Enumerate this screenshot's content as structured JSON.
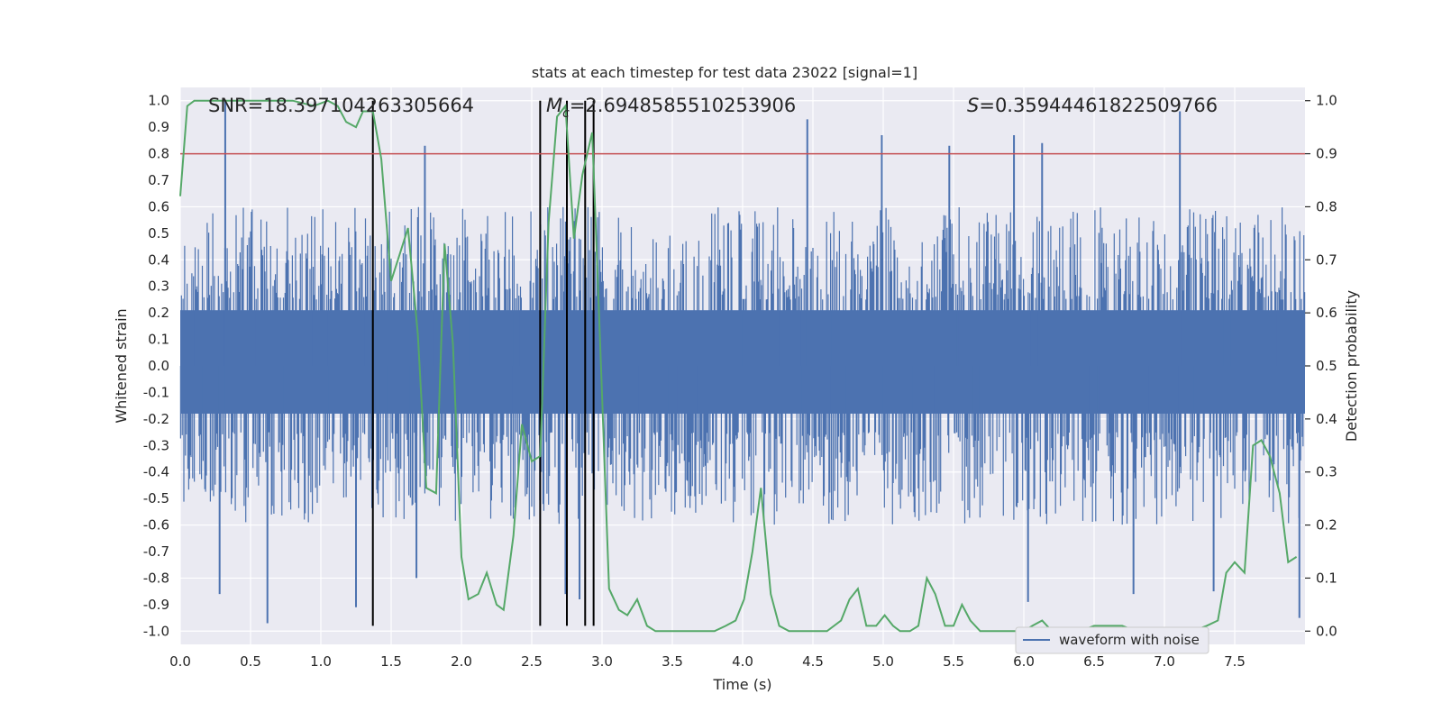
{
  "chart_data": {
    "type": "line",
    "title": "stats at each timestep for test data 23022 [signal=1]",
    "xlabel": "Time (s)",
    "ylabel": "Whitened strain",
    "y2label": "Detection probability",
    "xlim": [
      0.0,
      8.0
    ],
    "ylim": [
      -1.05,
      1.05
    ],
    "y2lim": [
      -0.025,
      1.025
    ],
    "x_ticks": [
      0.0,
      0.5,
      1.0,
      1.5,
      2.0,
      2.5,
      3.0,
      3.5,
      4.0,
      4.5,
      5.0,
      5.5,
      6.0,
      6.5,
      7.0,
      7.5
    ],
    "x_tick_labels": [
      "0.0",
      "0.5",
      "1.0",
      "1.5",
      "2.0",
      "2.5",
      "3.0",
      "3.5",
      "4.0",
      "4.5",
      "5.0",
      "5.5",
      "6.0",
      "6.5",
      "7.0",
      "7.5"
    ],
    "y_ticks": [
      1.0,
      0.9,
      0.8,
      0.7,
      0.6,
      0.5,
      0.4,
      0.3,
      0.2,
      0.1,
      0.0,
      -0.1,
      -0.2,
      -0.3,
      -0.4,
      -0.5,
      -0.6,
      -0.7,
      -0.8,
      -0.9,
      -1.0
    ],
    "y_tick_labels": [
      "1.0",
      "0.9",
      "0.8",
      "0.7",
      "0.6",
      "0.5",
      "0.4",
      "0.3",
      "0.2",
      "0.1",
      "0.0",
      "-0.1",
      "-0.2",
      "-0.3",
      "-0.4",
      "-0.5",
      "-0.6",
      "-0.7",
      "-0.8",
      "-0.9",
      "-1.0"
    ],
    "y2_ticks": [
      1.0,
      0.9,
      0.8,
      0.7,
      0.6,
      0.5,
      0.4,
      0.3,
      0.2,
      0.1,
      0.0
    ],
    "y2_tick_labels": [
      "1.0",
      "0.9",
      "0.8",
      "0.7",
      "0.6",
      "0.5",
      "0.4",
      "0.3",
      "0.2",
      "0.1",
      "0.0"
    ],
    "grid": true,
    "annotations": {
      "snr": "SNR=18.397104263305664",
      "mc_symbol": "M",
      "mc_subscript": "c",
      "mc_value": "=2.6948585510253906",
      "s_symbol": "S",
      "s_value": "=0.35944461822509766"
    },
    "threshold": {
      "value": 0.9,
      "axis": "y2",
      "color": "#c44e52"
    },
    "vertical_markers": {
      "x": [
        1.37,
        2.56,
        2.75,
        2.88,
        2.94
      ],
      "y_range": [
        -0.98,
        1.0
      ],
      "color": "#000000"
    },
    "series": [
      {
        "name": "waveform with noise",
        "axis": "y",
        "color": "#4c72b0",
        "kind": "noise-envelope",
        "dense_band": [
          -0.18,
          0.21
        ],
        "typical_peak_range": [
          0.25,
          0.6
        ],
        "outlier_peaks": [
          {
            "t": 0.32,
            "v": 1.0
          },
          {
            "t": 0.62,
            "v": -0.97
          },
          {
            "t": 1.25,
            "v": -0.91
          },
          {
            "t": 1.74,
            "v": 0.83
          },
          {
            "t": 2.74,
            "v": -0.86
          },
          {
            "t": 2.84,
            "v": -0.88
          },
          {
            "t": 4.46,
            "v": 0.93
          },
          {
            "t": 5.93,
            "v": 0.87
          },
          {
            "t": 6.03,
            "v": -0.89
          },
          {
            "t": 6.13,
            "v": 0.84
          },
          {
            "t": 6.78,
            "v": -0.86
          },
          {
            "t": 7.11,
            "v": 0.96
          },
          {
            "t": 7.35,
            "v": -0.85
          },
          {
            "t": 7.96,
            "v": -0.95
          },
          {
            "t": 0.28,
            "v": -0.86
          },
          {
            "t": 4.99,
            "v": 0.87
          },
          {
            "t": 5.47,
            "v": 0.83
          },
          {
            "t": 1.68,
            "v": -0.8
          }
        ]
      },
      {
        "name": "detection probability",
        "axis": "y2",
        "color": "#55a868",
        "x": [
          0.0,
          0.05,
          0.1,
          0.2,
          0.3,
          0.4,
          0.5,
          0.6,
          0.7,
          0.8,
          0.95,
          1.05,
          1.12,
          1.18,
          1.25,
          1.3,
          1.37,
          1.43,
          1.5,
          1.56,
          1.62,
          1.69,
          1.75,
          1.82,
          1.88,
          1.94,
          2.0,
          2.05,
          2.12,
          2.18,
          2.25,
          2.3,
          2.37,
          2.43,
          2.5,
          2.56,
          2.62,
          2.68,
          2.74,
          2.8,
          2.86,
          2.93,
          2.99,
          3.05,
          3.12,
          3.18,
          3.25,
          3.32,
          3.38,
          3.5,
          3.6,
          3.7,
          3.8,
          3.88,
          3.95,
          4.01,
          4.07,
          4.13,
          4.2,
          4.26,
          4.33,
          4.4,
          4.5,
          4.6,
          4.7,
          4.76,
          4.82,
          4.88,
          4.95,
          5.01,
          5.07,
          5.12,
          5.19,
          5.25,
          5.31,
          5.37,
          5.44,
          5.5,
          5.56,
          5.62,
          5.69,
          5.75,
          5.83,
          5.9,
          6.0,
          6.06,
          6.13,
          6.2,
          6.3,
          6.4,
          6.5,
          6.6,
          6.7,
          6.8,
          6.9,
          7.0,
          7.1,
          7.2,
          7.3,
          7.38,
          7.44,
          7.5,
          7.57,
          7.63,
          7.69,
          7.75,
          7.82,
          7.88,
          7.94
        ],
        "values": [
          0.82,
          0.99,
          1.0,
          1.0,
          1.0,
          1.0,
          1.0,
          1.0,
          1.0,
          1.0,
          0.99,
          1.0,
          0.99,
          0.96,
          0.95,
          0.98,
          0.98,
          0.89,
          0.66,
          0.71,
          0.76,
          0.56,
          0.27,
          0.26,
          0.73,
          0.54,
          0.14,
          0.06,
          0.07,
          0.11,
          0.05,
          0.04,
          0.18,
          0.39,
          0.32,
          0.33,
          0.77,
          0.97,
          0.99,
          0.74,
          0.86,
          0.94,
          0.52,
          0.08,
          0.04,
          0.03,
          0.06,
          0.01,
          0.0,
          0.0,
          0.0,
          0.0,
          0.0,
          0.01,
          0.02,
          0.06,
          0.15,
          0.27,
          0.07,
          0.01,
          0.0,
          0.0,
          0.0,
          0.0,
          0.02,
          0.06,
          0.08,
          0.01,
          0.01,
          0.03,
          0.01,
          0.0,
          0.0,
          0.01,
          0.1,
          0.07,
          0.01,
          0.01,
          0.05,
          0.02,
          0.0,
          0.0,
          0.0,
          0.0,
          0.0,
          0.01,
          0.02,
          0.0,
          0.0,
          0.0,
          0.01,
          0.01,
          0.01,
          0.0,
          0.0,
          0.0,
          0.0,
          0.0,
          0.01,
          0.02,
          0.11,
          0.13,
          0.11,
          0.35,
          0.36,
          0.33,
          0.26,
          0.13,
          0.14
        ]
      }
    ],
    "legend": {
      "placement": "lower-right",
      "entries": [
        "waveform with noise"
      ]
    }
  }
}
